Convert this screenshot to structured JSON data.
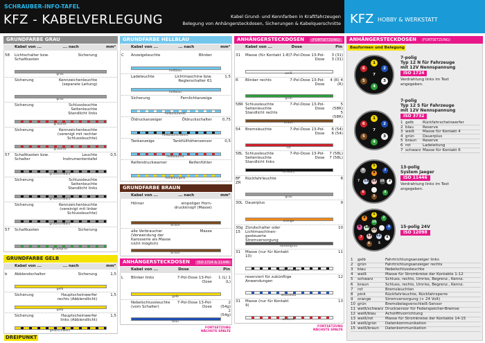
{
  "header": {
    "kicker": "SCHRAUBER-INFO-TAFEL",
    "title": "KFZ - KABELVERLEGUNG",
    "subtitle1": "Kabel Grund- und Kennfarben in Kraftfahrzeugen",
    "subtitle2": "Belegung von Anhängersteckdosen, Sicherungen & Kabelquerschnitte"
  },
  "brand": {
    "title": "KFZ",
    "subtitle": "HOBBY & WERKSTATT"
  },
  "logo": "DREIPUNKT",
  "sections": [
    {
      "title": "GRUNDFARBE GRAU",
      "color": "#8c8c8c",
      "text_color": "#fff",
      "head": [
        "Kabel von ...",
        "... nach",
        "mm²"
      ],
      "rows": [
        {
          "n": "58",
          "from": "Lichtschalter bzw. Schaltkasten",
          "to": "Sicherung",
          "wire": "grau",
          "colors": [
            "#999"
          ]
        },
        {
          "from": "Sicherung",
          "to": "Kennzeichenleuchte (separate Leitung)",
          "wire": "grau",
          "colors": [
            "#999"
          ]
        },
        {
          "from": "Sicherung",
          "to": "Schlussleuchte Seitenleuchte Standlicht links",
          "wire": "grau/rot",
          "colors": [
            "#999",
            "#d0202a"
          ]
        },
        {
          "from": "Sicherung",
          "to": "Kennzeichenleuchte (verenigt mit rechter Schlussleuchte)",
          "wire": "grau/rot",
          "colors": [
            "#999",
            "#d0202a"
          ]
        },
        {
          "n": "57",
          "from": "Schaltkasten bzw. Schalter",
          "to": "Leuchte Instrumententafel",
          "end": "0,5",
          "wire": "grau/schwarz",
          "colors": [
            "#999",
            "#111"
          ]
        },
        {
          "from": "Sicherung",
          "to": "Schlussleuchte Seitenleuchte Standlicht links",
          "wire": "grau/schwarz",
          "colors": [
            "#999",
            "#111"
          ]
        },
        {
          "from": "Sicherung",
          "to": "Kennzeichenleuchte (vereinigt mit linker Schlussleuchte)",
          "wire": "grau/schwarz",
          "colors": [
            "#999",
            "#111"
          ]
        },
        {
          "n": "57",
          "from": "Schaltkasten",
          "to": "Sicherung",
          "wire": "grau/grün",
          "colors": [
            "#999",
            "#2a9d3a"
          ]
        }
      ]
    },
    {
      "title": "GRUNDFARBE GELB",
      "color": "#f5e400",
      "text_color": "#222",
      "head": [
        "Kabel von ...",
        "... nach",
        "mm²"
      ],
      "rows": [
        {
          "n": "b",
          "from": "Abblendschalter",
          "to": "Sicherung",
          "end": "1,5",
          "wire": "gelb",
          "colors": [
            "#f5d800"
          ]
        },
        {
          "from": "Sicherung",
          "to": "Hauptscheinwerfer rechts (Abblendlicht)",
          "end": "1,5",
          "wire": "gelb",
          "colors": [
            "#f5d800"
          ]
        },
        {
          "from": "Sicherung",
          "to": "Hauptscheinwerfer links (Abblendlicht)",
          "end": "1,5",
          "wire": "gelb/schwarz",
          "colors": [
            "#f5d800",
            "#111"
          ]
        }
      ]
    },
    {
      "title": "GRUNDFARBE HELLBLAU",
      "color": "#74c7ec",
      "text_color": "#fff",
      "head": [
        "Kabel von ...",
        "... nach",
        "mm²"
      ],
      "rows": [
        {
          "n": "C",
          "from": "Anzeigeleuchte",
          "to": "Blinker",
          "wire": "hellblau",
          "colors": [
            "#6ec6ee"
          ]
        },
        {
          "from": "Ladeleuchte",
          "to": "Lichtmaschine bzw. Reglerschalter 61",
          "end": "1,5",
          "wire": "hellblau",
          "colors": [
            "#6ec6ee"
          ]
        },
        {
          "from": "Sicherung",
          "to": "Fernlichtanzeige",
          "wire": "hellblau/weiß",
          "colors": [
            "#6ec6ee",
            "#f4f4f4"
          ]
        },
        {
          "from": "Öldruckanzeiger",
          "to": "Öldruckschalter",
          "end": "0,75",
          "wire": "hellblau/schwarz",
          "colors": [
            "#6ec6ee",
            "#111"
          ]
        },
        {
          "from": "Tankanzeige",
          "to": "Tankfüllhöhensensor",
          "end": "0,5",
          "wire": "hellblau/rot",
          "colors": [
            "#6ec6ee",
            "#d0202a"
          ]
        },
        {
          "from": "Reifendruckwarner",
          "to": "Reifenfühler",
          "wire": "hellblau/gelb",
          "colors": [
            "#6ec6ee",
            "#f5d800"
          ]
        }
      ]
    },
    {
      "title": "GRUNDFARBE BRAUN",
      "color": "#5a2a18",
      "text_color": "#fff",
      "head": [
        "Kabel von ...",
        "... nach",
        "mm²"
      ],
      "rows": [
        {
          "from": "Hörner",
          "to": "einpoliger Horn-druckknopf (Masse)",
          "wire": "braun",
          "colors": [
            "#7a4a1e"
          ]
        },
        {
          "from": "alle Verbraucher (Verwendung der Karosserie als Masse nicht möglich)",
          "to": "Masse",
          "wire": "braun",
          "colors": [
            "#7a4a1e"
          ]
        }
      ]
    },
    {
      "title": "ANHÄNGERSTECKDOSEN",
      "title2": "ISO 1724 & 11446",
      "color": "#e8178a",
      "text_color": "#fff",
      "head": [
        "Kabel von ...",
        "Dose",
        "Pin"
      ],
      "footer": "FORTSETZUNG NÄCHSTE SPALTE",
      "rows": [
        {
          "n": "L",
          "from": "Blinker links",
          "to": "7-Pol-Dose 13-Pol-Dose",
          "end": "1 (L) 1 (L)",
          "wire": "gelb",
          "colors": [
            "#f5d800"
          ]
        },
        {
          "from": "Nebelschlussleuchte (vom Schalter)",
          "to": "7-Pol-Dose 13-Pol-Dose",
          "end": "2 (54g) 2 (54g)",
          "wire": "blau",
          "colors": [
            "#1f4fb5"
          ]
        }
      ]
    },
    {
      "title": "ANHÄNGERSTECKDOSEN",
      "title2": "(FORTSETZUNG)",
      "color": "#e8178a",
      "text_color": "#fff",
      "head": [
        "Kabel von ...",
        "Dose",
        "Pin"
      ],
      "footer": "FORTSETZUNG NÄCHSTE SPALTE",
      "rows": [
        {
          "n": "31",
          "from": "Masse (für Kontakt 1-8)",
          "to": "7-Pol-Dose 13-Pol-Dose",
          "end": "3 (31) 3 (31)",
          "wire": "weiß",
          "colors": [
            "#f4f4f4"
          ]
        },
        {
          "n": "R",
          "from": "Blinker rechts",
          "to": "7-Pol-Dose 13-Pol-Dose",
          "end": "4 (R) 4 (R)",
          "wire": "grün",
          "colors": [
            "#2a9d3a"
          ]
        },
        {
          "n": "58R",
          "from": "Schlussleuchte Seitenleuchte Standlicht rechts",
          "to": "7-Pol-Dose 13-Pol-Dose",
          "end": "5 (58R) 5 (58R)",
          "wire": "braun",
          "colors": [
            "#7a4a1e"
          ]
        },
        {
          "n": "54",
          "from": "Bremsleuchte",
          "to": "7-Pol-Dose 13-Pol-Dose",
          "end": "6 (54) 6 (54)",
          "wire": "rot",
          "colors": [
            "#d0202a"
          ]
        },
        {
          "n": "58L",
          "from": "Schlussleuchte Seitenleuchte Standlicht links",
          "to": "7-Pol-Dose 13-Pol-Dose",
          "end": "7 (58L) 7 (58L)",
          "wire": "schwarz",
          "colors": [
            "#111"
          ]
        },
        {
          "n": "BF ZR",
          "from": "Rückfahrleuchte",
          "end": "8",
          "wire": "grau",
          "colors": [
            "#999"
          ]
        },
        {
          "n": "30L",
          "from": "Dauerplus",
          "end": "9",
          "wire": "orange",
          "colors": [
            "#f08a1c"
          ]
        },
        {
          "n": "30g 15",
          "from": "Zündschalter oder Lichtmaschinen-gesteuerte Stromversorgung",
          "end": "10",
          "wire": "dunkelgrau",
          "colors": [
            "#555"
          ]
        },
        {
          "n": "31",
          "from": "Masse (nur für Kontakt 10)",
          "end": "11",
          "wire": "weiß/schwarz",
          "colors": [
            "#f4f4f4",
            "#111"
          ]
        },
        {
          "from": "reserviert für zukünftige Anwendungen",
          "end": "12",
          "wire": "weiß/blau",
          "colors": [
            "#f4f4f4",
            "#1f4fb5"
          ]
        },
        {
          "n": "31",
          "from": "Masse (nur für Kontakt 9)",
          "end": "13",
          "wire": "weiß/rot",
          "colors": [
            "#f4f4f4",
            "#d0202a"
          ]
        }
      ]
    }
  ],
  "plugs_panel": {
    "title": "ANHÄNGERSTECKDOSEN",
    "title2": "(FORTSETZUNG)",
    "sub": "Bauformen und Belegung"
  },
  "plugs": [
    {
      "title": [
        "7-polig",
        "Typ 12 N für Fahrzeuge",
        "mit 12V Nennspannung"
      ],
      "iso": "ISO 1724",
      "note": [
        "Verdrahtung links im Text",
        "angegeben."
      ],
      "pin_labels": [
        "1",
        "2",
        "3",
        "4",
        "5",
        "6",
        "7"
      ],
      "pin_colors": [
        "#f5d800",
        "#1f4fb5",
        "#f4f4f4",
        "#2a9d3a",
        "#7a4a1e",
        "#d0202a",
        "#111"
      ]
    },
    {
      "title": [
        "7-polig",
        "Typ 12 S für Fahrzeuge",
        "mit 12V Nennspannung"
      ],
      "iso": "ISO 3732",
      "pin_labels": [
        "1",
        "2",
        "3",
        "4",
        "5",
        "6",
        "7"
      ],
      "pin_colors": [
        "#f5d800",
        "#1f4fb5",
        "#f4f4f4",
        "#2a9d3a",
        "#7a4a1e",
        "#d0202a",
        "#111"
      ],
      "table": [
        [
          "1",
          "gelb",
          "Rückfahrscheinwerfer"
        ],
        [
          "2",
          "blau",
          "Reserve"
        ],
        [
          "3",
          "weiß",
          "Masse für Kontakt 4"
        ],
        [
          "4",
          "grün",
          "Dauerplus"
        ],
        [
          "5",
          "braun",
          "Reserve"
        ],
        [
          "6",
          "rot",
          "Ladeleitung"
        ],
        [
          "7",
          "schwarz",
          "Masse für Kontakt 6"
        ]
      ]
    },
    {
      "title": [
        "13-polig",
        "System Jaeger"
      ],
      "iso": "ISO 11446",
      "note": [
        "Verdrahtung links im Text",
        "angegeben."
      ],
      "pin_labels": [
        "1",
        "2",
        "3",
        "4",
        "5",
        "6",
        "7",
        "8",
        "9",
        "10",
        "11",
        "12",
        "13"
      ],
      "pin_colors": [
        "#f5d800",
        "#1f4fb5",
        "#f4f4f4",
        "#2a9d3a",
        "#7a4a1e",
        "#d0202a",
        "#111",
        "#999",
        "#f08a1c",
        "#555",
        "#eee",
        "#cfe0ff",
        "#ffd0d0"
      ]
    },
    {
      "title": [
        "15-polig  24V"
      ],
      "iso": "ISO 12098",
      "pin_labels": [
        "1",
        "2",
        "3",
        "4",
        "5",
        "6",
        "7",
        "8",
        "9",
        "10",
        "11",
        "12",
        "13",
        "14",
        "15"
      ],
      "pin_colors": [
        "#f5d800",
        "#2a9d3a",
        "#1f4fb5",
        "#f4f4f4",
        "#111",
        "#7a4a1e",
        "#d0202a",
        "#e85aa8",
        "#f08a1c",
        "#2a9d3a",
        "#eee",
        "#cfe0ff",
        "#ffd0d0",
        "#d0f0d0",
        "#e8d8c8"
      ],
      "table": [
        [
          "1",
          "gelb",
          "Fahrtrichtungsanzeiger links"
        ],
        [
          "2",
          "grün",
          "Fahrtrichtungsanzeiger rechts"
        ],
        [
          "3",
          "blau",
          "Nebelschlussleuchte"
        ],
        [
          "4",
          "weiß",
          "Masse für Stromkreise der Kontakte 1-12"
        ],
        [
          "5",
          "schwarz",
          "Schluss, rechts, Umriss, Begrenz., Kennz."
        ],
        [
          "6",
          "braun",
          "Schluss, rechts, Umriss, Begrenz., Kennz."
        ],
        [
          "7",
          "rot",
          "Bremsleuchten"
        ],
        [
          "8",
          "pink",
          "Rückfahrleuchte, Rückfahrsperre"
        ],
        [
          "9",
          "orange",
          "Stromversorgung (+ 24 Volt)"
        ],
        [
          "10",
          "grün",
          "Bremsbelagverschleiß-Sensor"
        ],
        [
          "11",
          "weiß/schwarz",
          "Drucksensor für Federspeicher-Bremse"
        ],
        [
          "12",
          "weiß/blau",
          "Achslifttvorrichtung"
        ],
        [
          "13",
          "weiß/rot",
          "Masse für Stromkreise der Kontakte 14-15"
        ],
        [
          "14",
          "weiß/grün",
          "Datenkommunikation"
        ],
        [
          "15",
          "weiß/braun",
          "Datenkommunikation"
        ]
      ]
    }
  ]
}
